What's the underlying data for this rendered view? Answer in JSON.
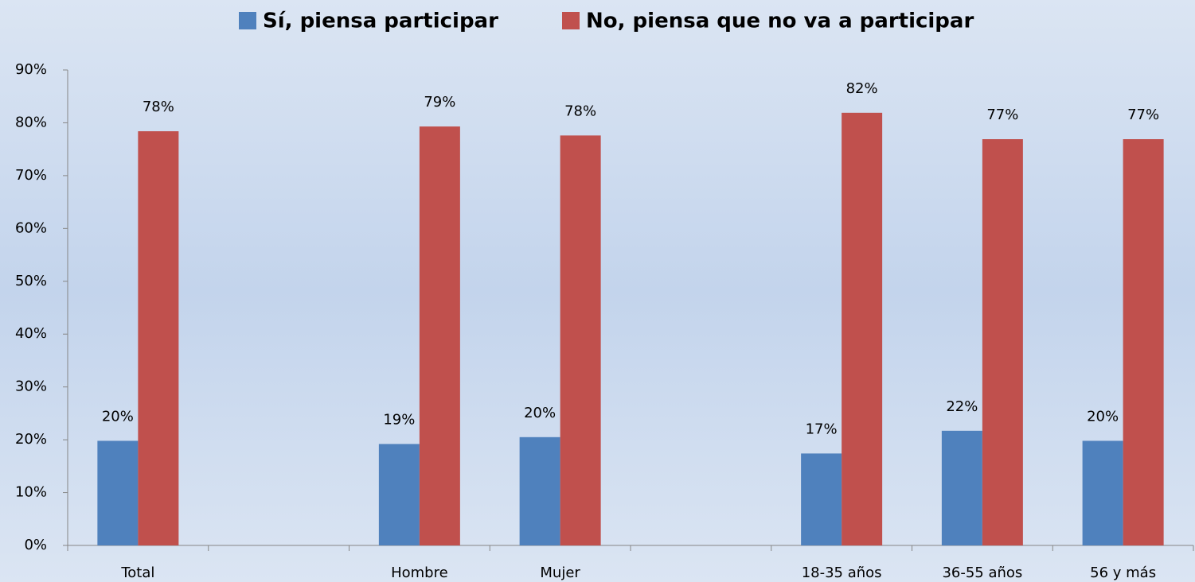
{
  "chart_data": {
    "type": "bar",
    "categories": [
      "Total",
      null,
      "Hombre",
      "Mujer",
      null,
      "18-35 años",
      "36-55 años",
      "56 y más"
    ],
    "series": [
      {
        "name": "Sí, piensa participar",
        "color": "#4f81bd",
        "values": [
          19.8,
          null,
          19.2,
          20.5,
          null,
          17.4,
          21.7,
          19.8
        ],
        "value_labels": [
          "20%",
          null,
          "19%",
          "20%",
          null,
          "17%",
          "22%",
          "20%"
        ]
      },
      {
        "name": "No, piensa que no va a participar",
        "color": "#c0504d",
        "values": [
          78.4,
          null,
          79.3,
          77.6,
          null,
          81.9,
          76.9,
          76.9
        ],
        "value_labels": [
          "78%",
          null,
          "79%",
          "78%",
          null,
          "82%",
          "77%",
          "77%"
        ]
      }
    ],
    "ylim": [
      0,
      90
    ],
    "yticks": [
      {
        "value": 0,
        "label": "0%"
      },
      {
        "value": 10,
        "label": "10%"
      },
      {
        "value": 20,
        "label": "20%"
      },
      {
        "value": 30,
        "label": "30%"
      },
      {
        "value": 40,
        "label": "40%"
      },
      {
        "value": 50,
        "label": "50%"
      },
      {
        "value": 60,
        "label": "60%"
      },
      {
        "value": 70,
        "label": "70%"
      },
      {
        "value": 80,
        "label": "80%"
      },
      {
        "value": 90,
        "label": "90%"
      }
    ],
    "legend": "top"
  }
}
